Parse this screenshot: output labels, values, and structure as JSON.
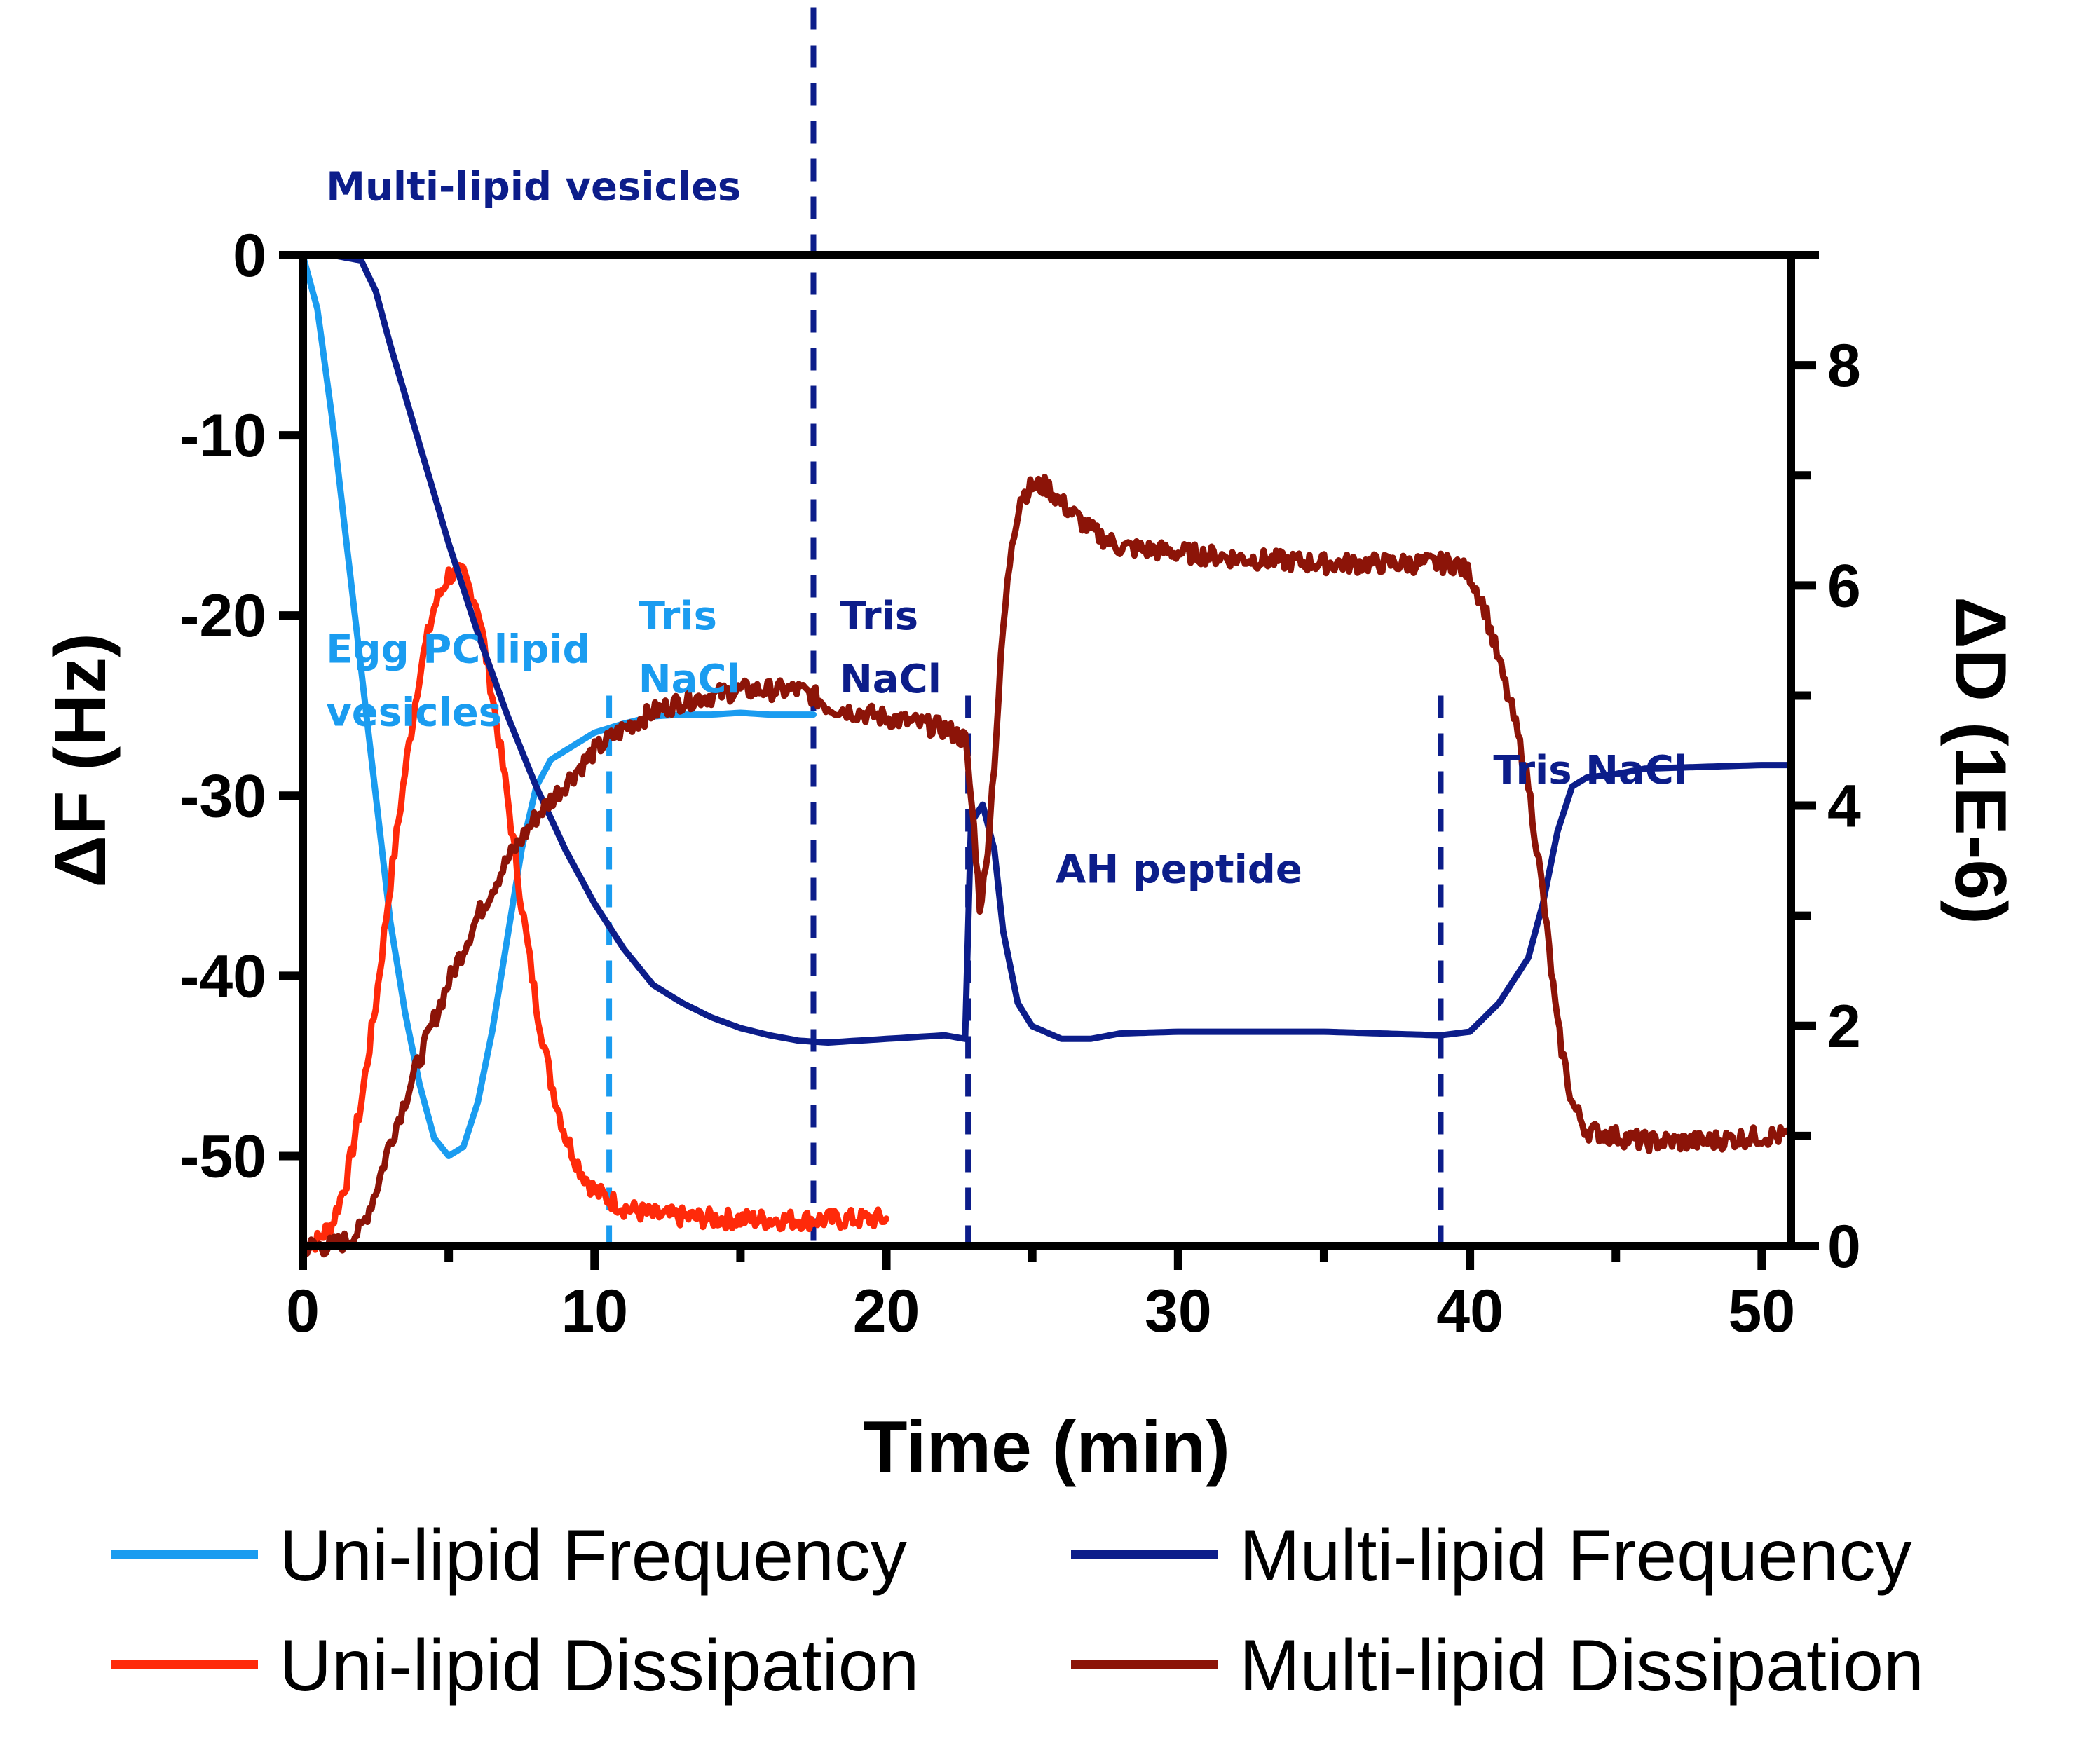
{
  "chart_data": {
    "type": "line",
    "xlabel": "Time (min)",
    "ylabel_left": "ΔF (Hz)",
    "ylabel_right": "ΔD (1E-6)",
    "xlim": [
      0,
      51
    ],
    "ylim_left": [
      -55,
      0
    ],
    "ylim_right": [
      0,
      9
    ],
    "x_ticks": [
      0,
      10,
      20,
      30,
      40,
      50
    ],
    "y_left_ticks": [
      0,
      -10,
      -20,
      -30,
      -40,
      -50
    ],
    "y_right_ticks": [
      0,
      2,
      4,
      6,
      8
    ],
    "colors": {
      "uni_freq": "#1a9cf0",
      "uni_diss": "#ff2a0a",
      "multi_freq": "#0c1d8a",
      "multi_diss": "#8c1408",
      "annot_light": "#1a9cf0",
      "annot_dark": "#0c1d8a"
    },
    "series": [
      {
        "name": "Uni-lipid Frequency",
        "axis": "left",
        "key": "uni_freq",
        "x": [
          0,
          0.5,
          1,
          1.5,
          2,
          2.5,
          3,
          3.5,
          4,
          4.5,
          5,
          5.5,
          6,
          6.5,
          7,
          7.5,
          8,
          8.5,
          9,
          9.5,
          10,
          11,
          12,
          13,
          14,
          15,
          16,
          17.5
        ],
        "y": [
          0,
          -3,
          -9,
          -16,
          -23,
          -30,
          -37,
          -42,
          -46,
          -49,
          -50,
          -49.5,
          -47,
          -43,
          -38,
          -33,
          -29.5,
          -28,
          -27.5,
          -27,
          -26.5,
          -26,
          -25.6,
          -25.5,
          -25.5,
          -25.4,
          -25.5,
          -25.5
        ]
      },
      {
        "name": "Uni-lipid Dissipation",
        "axis": "right",
        "key": "uni_diss",
        "x": [
          0,
          0.5,
          1,
          1.5,
          2,
          2.5,
          3,
          3.5,
          4,
          4.5,
          5,
          5.5,
          6,
          6.5,
          7,
          7.5,
          8,
          8.5,
          9,
          9.5,
          10,
          11,
          12,
          14,
          16,
          18,
          20
        ],
        "y": [
          0,
          0.05,
          0.2,
          0.6,
          1.3,
          2.2,
          3.3,
          4.3,
          5.2,
          5.8,
          6.1,
          6.1,
          5.8,
          5.0,
          4.1,
          3.1,
          2.2,
          1.5,
          1.0,
          0.7,
          0.5,
          0.35,
          0.28,
          0.25,
          0.24,
          0.24,
          0.25
        ]
      },
      {
        "name": "Multi-lipid Frequency",
        "axis": "left",
        "key": "multi_freq",
        "x": [
          0,
          1,
          2,
          2.5,
          3,
          4,
          5,
          6,
          7,
          8,
          9,
          10,
          11,
          12,
          13,
          14,
          15,
          16,
          17,
          18,
          19,
          20,
          21,
          22,
          22.7,
          22.9,
          23.3,
          23.7,
          24,
          24.5,
          25,
          26,
          27,
          28,
          30,
          35,
          39,
          40,
          41,
          42,
          42.5,
          43,
          43.5,
          44,
          45,
          46,
          48,
          50,
          51
        ],
        "y": [
          0,
          0,
          -0.3,
          -2,
          -5,
          -10.5,
          -16,
          -21,
          -25.5,
          -29.5,
          -33,
          -36,
          -38.5,
          -40.5,
          -41.5,
          -42.3,
          -42.9,
          -43.3,
          -43.6,
          -43.7,
          -43.6,
          -43.5,
          -43.4,
          -43.3,
          -43.5,
          -31.5,
          -30.5,
          -33,
          -37.5,
          -41.5,
          -42.8,
          -43.5,
          -43.5,
          -43.2,
          -43.1,
          -43.1,
          -43.3,
          -43.1,
          -41.5,
          -39,
          -36,
          -32,
          -29.5,
          -29,
          -28.8,
          -28.5,
          -28.4,
          -28.3,
          -28.3
        ]
      },
      {
        "name": "Multi-lipid Dissipation",
        "axis": "right",
        "key": "multi_diss",
        "x": [
          0,
          1,
          1.5,
          2,
          2.5,
          3,
          4,
          5,
          6,
          7,
          8,
          9,
          10,
          11,
          12,
          13,
          14,
          15,
          16,
          17,
          17.5,
          18,
          19,
          20,
          21,
          22,
          22.7,
          23,
          23.2,
          23.4,
          23.7,
          24,
          24.3,
          24.6,
          25,
          25.5,
          26,
          27,
          28,
          30,
          32,
          35,
          38,
          39.5,
          40,
          40.5,
          41,
          41.5,
          42,
          42.5,
          43,
          43.5,
          44,
          45,
          46,
          48,
          50,
          51
        ],
        "y": [
          0,
          0,
          0.05,
          0.15,
          0.5,
          0.95,
          1.7,
          2.4,
          3.0,
          3.5,
          3.9,
          4.2,
          4.5,
          4.7,
          4.85,
          4.95,
          5.0,
          5.05,
          5.05,
          5.05,
          5.0,
          4.9,
          4.85,
          4.8,
          4.75,
          4.7,
          4.6,
          3.8,
          3.1,
          3.4,
          4.4,
          5.6,
          6.4,
          6.8,
          6.9,
          6.9,
          6.75,
          6.5,
          6.35,
          6.3,
          6.25,
          6.2,
          6.2,
          6.2,
          6.1,
          5.8,
          5.3,
          4.8,
          4.2,
          3.2,
          2.0,
          1.3,
          1.05,
          1.0,
          0.95,
          0.95,
          1.0,
          1.0
        ]
      }
    ],
    "vlines": [
      {
        "x": 10.5,
        "y_top": 5,
        "color_key": "annot_light"
      },
      {
        "x": 17.5,
        "y_top": 14,
        "color_key": "annot_dark"
      },
      {
        "x": 22.8,
        "y_top": 5,
        "color_key": "annot_dark"
      },
      {
        "x": 39.0,
        "y_top": 5,
        "color_key": "annot_dark"
      }
    ],
    "annotations": [
      {
        "lines": [
          "Multi-lipid vesicles"
        ],
        "x": 0.8,
        "y": 9.5,
        "color_key": "annot_dark"
      },
      {
        "lines": [
          "Egg PC lipid",
          "vesicles"
        ],
        "x": 0.8,
        "y": 5.3,
        "color_key": "annot_light"
      },
      {
        "lines": [
          "Tris",
          "NaCl"
        ],
        "x": 11.5,
        "y": 5.6,
        "color_key": "annot_light"
      },
      {
        "lines": [
          "Tris",
          "NaCl"
        ],
        "x": 18.4,
        "y": 5.6,
        "color_key": "annot_dark"
      },
      {
        "lines": [
          "AH peptide"
        ],
        "x": 25.8,
        "y": 3.3,
        "color_key": "annot_dark"
      },
      {
        "lines": [
          "Tris NaCl"
        ],
        "x": 40.8,
        "y": 4.2,
        "color_key": "annot_dark"
      }
    ]
  },
  "legend": {
    "uni_freq": "Uni-lipid Frequency",
    "uni_diss": "Uni-lipid Dissipation",
    "multi_freq": "Multi-lipid Frequency",
    "multi_diss": "Multi-lipid Dissipation"
  }
}
